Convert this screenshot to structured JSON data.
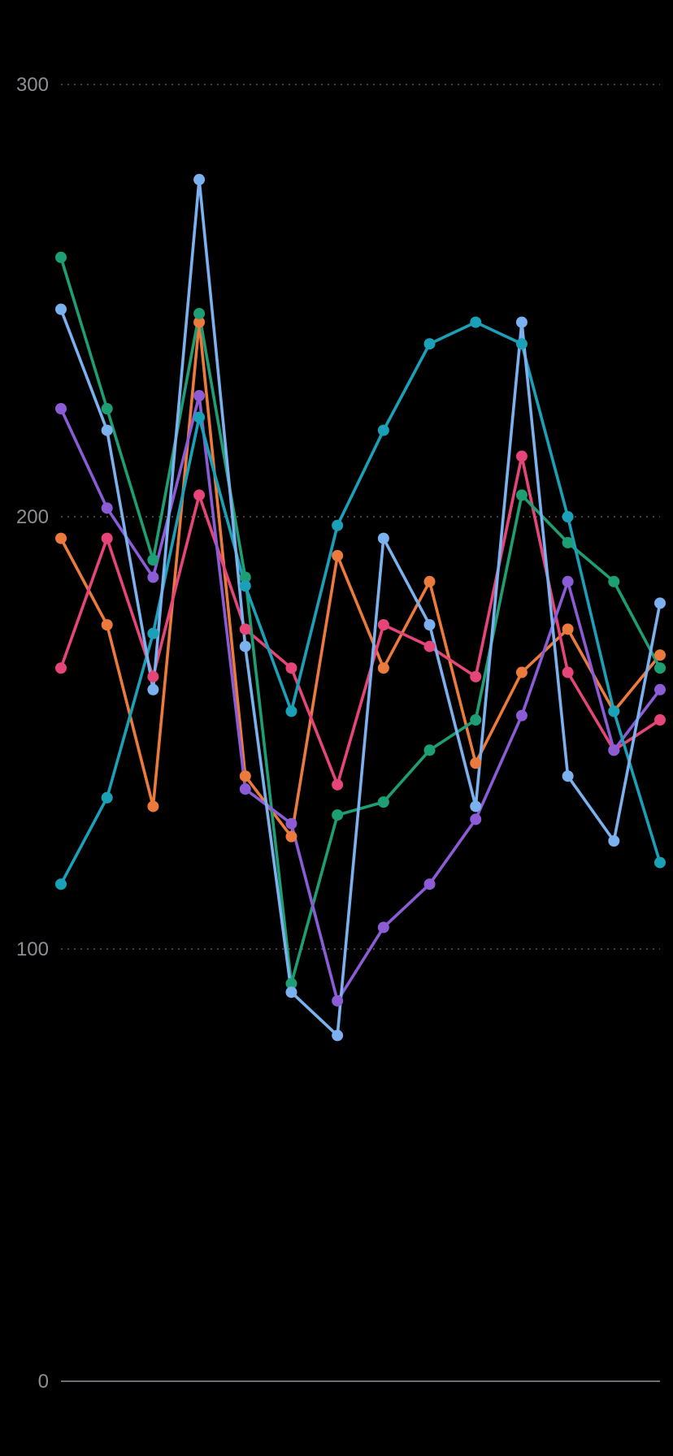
{
  "chart_data": {
    "type": "line",
    "title": "",
    "xlabel": "",
    "ylabel": "",
    "ylim": [
      0,
      300
    ],
    "yticks": [
      {
        "value": 0,
        "label": "0"
      },
      {
        "value": 100,
        "label": "100"
      },
      {
        "value": 200,
        "label": "200"
      },
      {
        "value": 300,
        "label": "300"
      }
    ],
    "grid": true,
    "legend": "none",
    "x": [
      1,
      2,
      3,
      4,
      5,
      6,
      7,
      8,
      9,
      10,
      11,
      12,
      13,
      14
    ],
    "series": [
      {
        "color": "#ec7a3d",
        "values": [
          195,
          175,
          133,
          245,
          140,
          126,
          191,
          165,
          185,
          143,
          164,
          174,
          155,
          168
        ]
      },
      {
        "color": "#e6457a",
        "values": [
          165,
          195,
          163,
          205,
          174,
          165,
          138,
          175,
          170,
          163,
          214,
          164,
          146,
          153
        ]
      },
      {
        "color": "#1e9e75",
        "values": [
          260,
          225,
          190,
          247,
          186,
          92,
          131,
          134,
          146,
          153,
          205,
          194,
          185,
          165
        ]
      },
      {
        "color": "#8b5cd6",
        "values": [
          225,
          202,
          186,
          228,
          137,
          129,
          88,
          105,
          115,
          130,
          154,
          185,
          146,
          160
        ]
      },
      {
        "color": "#1aa1b8",
        "values": [
          115,
          135,
          173,
          223,
          184,
          155,
          198,
          220,
          240,
          245,
          240,
          200,
          155,
          120
        ]
      },
      {
        "color": "#7ab1ee",
        "values": [
          248,
          220,
          160,
          278,
          170,
          90,
          80,
          195,
          175,
          133,
          245,
          140,
          125,
          180
        ]
      }
    ]
  }
}
